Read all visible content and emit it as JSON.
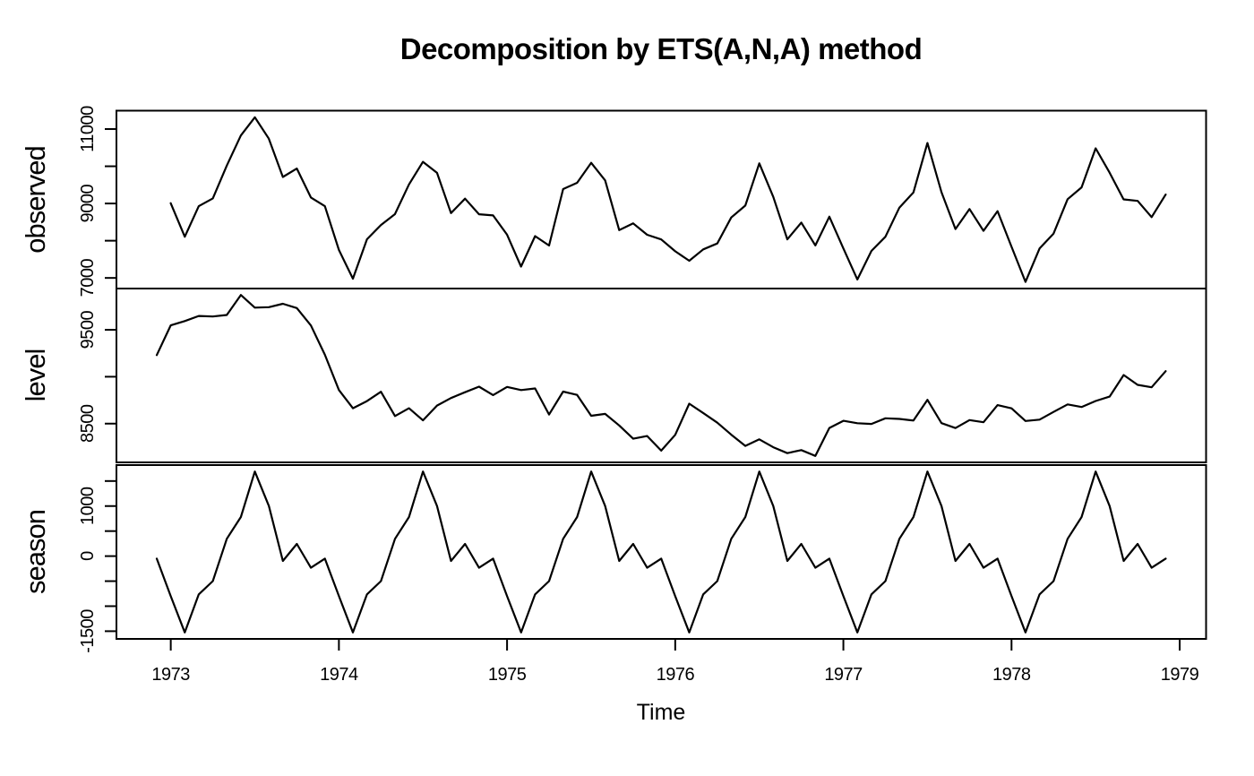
{
  "chart_data": {
    "type": "line",
    "title": "Decomposition by ETS(A,N,A) method",
    "xlabel": "Time",
    "x_unit": "monthly",
    "grid": false,
    "background": "#ffffff",
    "line_color": "#000000",
    "xlim": [
      1972.677,
      1979.157
    ],
    "x_ticks": [
      1973,
      1974,
      1975,
      1976,
      1977,
      1978,
      1979
    ],
    "x_tick_labels": [
      "1973",
      "1974",
      "1975",
      "1976",
      "1977",
      "1978",
      "1979"
    ],
    "panels": [
      {
        "name": "observed",
        "ylabel": "observed",
        "start": 1973.0,
        "ylim": [
          6715,
          11494
        ],
        "yticks": [
          7000,
          8000,
          9000,
          10000,
          11000
        ],
        "ytick_labels": [
          "7000",
          "",
          "9000",
          "",
          "11000"
        ],
        "values": [
          9007,
          8106,
          8928,
          9137,
          10017,
          10826,
          11317,
          10744,
          9713,
          9938,
          9161,
          8927,
          7750,
          6981,
          8038,
          8422,
          8714,
          9512,
          10120,
          9823,
          8743,
          9129,
          8710,
          8680,
          8162,
          7306,
          8124,
          7870,
          9387,
          9556,
          10093,
          9620,
          8285,
          8466,
          8160,
          8034,
          7717,
          7461,
          7767,
          7925,
          8623,
          8945,
          10078,
          9179,
          8037,
          8488,
          7874,
          8647,
          7792,
          6957,
          7726,
          8106,
          8890,
          9299,
          10625,
          9302,
          8314,
          8850,
          8265,
          8796,
          7836,
          6892,
          7791,
          8192,
          9115,
          9434,
          10484,
          9827,
          9110,
          9070,
          8633,
          9240
        ]
      },
      {
        "name": "level",
        "ylabel": "level",
        "start": 1972.9167,
        "ylim": [
          8087,
          9940
        ],
        "yticks": [
          8500,
          9000,
          9500
        ],
        "ytick_labels": [
          "8500",
          "",
          "9500"
        ],
        "values": [
          9230,
          9547,
          9593,
          9648,
          9642,
          9658,
          9871,
          9737,
          9741,
          9778,
          9732,
          9546,
          9234,
          8858,
          8664,
          8740,
          8840,
          8581,
          8664,
          8535,
          8693,
          8773,
          8835,
          8894,
          8804,
          8891,
          8858,
          8875,
          8597,
          8842,
          8806,
          8584,
          8604,
          8481,
          8339,
          8368,
          8212,
          8380,
          8713,
          8613,
          8510,
          8382,
          8263,
          8332,
          8248,
          8185,
          8218,
          8156,
          8454,
          8530,
          8504,
          8497,
          8557,
          8550,
          8533,
          8754,
          8505,
          8453,
          8538,
          8515,
          8697,
          8663,
          8528,
          8543,
          8625,
          8705,
          8677,
          8741,
          8788,
          9018,
          8913,
          8887,
          9059
        ]
      },
      {
        "name": "season",
        "ylabel": "season",
        "start": 1972.9167,
        "ylim": [
          -1654,
          1819
        ],
        "yticks": [
          -1500,
          -1000,
          -500,
          0,
          500,
          1000,
          1500
        ],
        "ytick_labels": [
          "-1500",
          "",
          "",
          "0",
          "",
          "1000",
          ""
        ],
        "values": [
          -50,
          -800,
          -1525,
          -765,
          -500,
          345,
          780,
          1690,
          1000,
          -96,
          243,
          -232,
          -50,
          -800,
          -1525,
          -765,
          -500,
          345,
          780,
          1690,
          1000,
          -96,
          243,
          -232,
          -50,
          -800,
          -1525,
          -765,
          -500,
          345,
          780,
          1690,
          1000,
          -96,
          243,
          -232,
          -50,
          -800,
          -1525,
          -765,
          -500,
          345,
          780,
          1690,
          1000,
          -96,
          243,
          -232,
          -50,
          -800,
          -1525,
          -765,
          -500,
          345,
          780,
          1690,
          1000,
          -96,
          243,
          -232,
          -50,
          -800,
          -1525,
          -765,
          -500,
          345,
          780,
          1690,
          1000,
          -96,
          243,
          -232,
          -50
        ]
      }
    ]
  }
}
